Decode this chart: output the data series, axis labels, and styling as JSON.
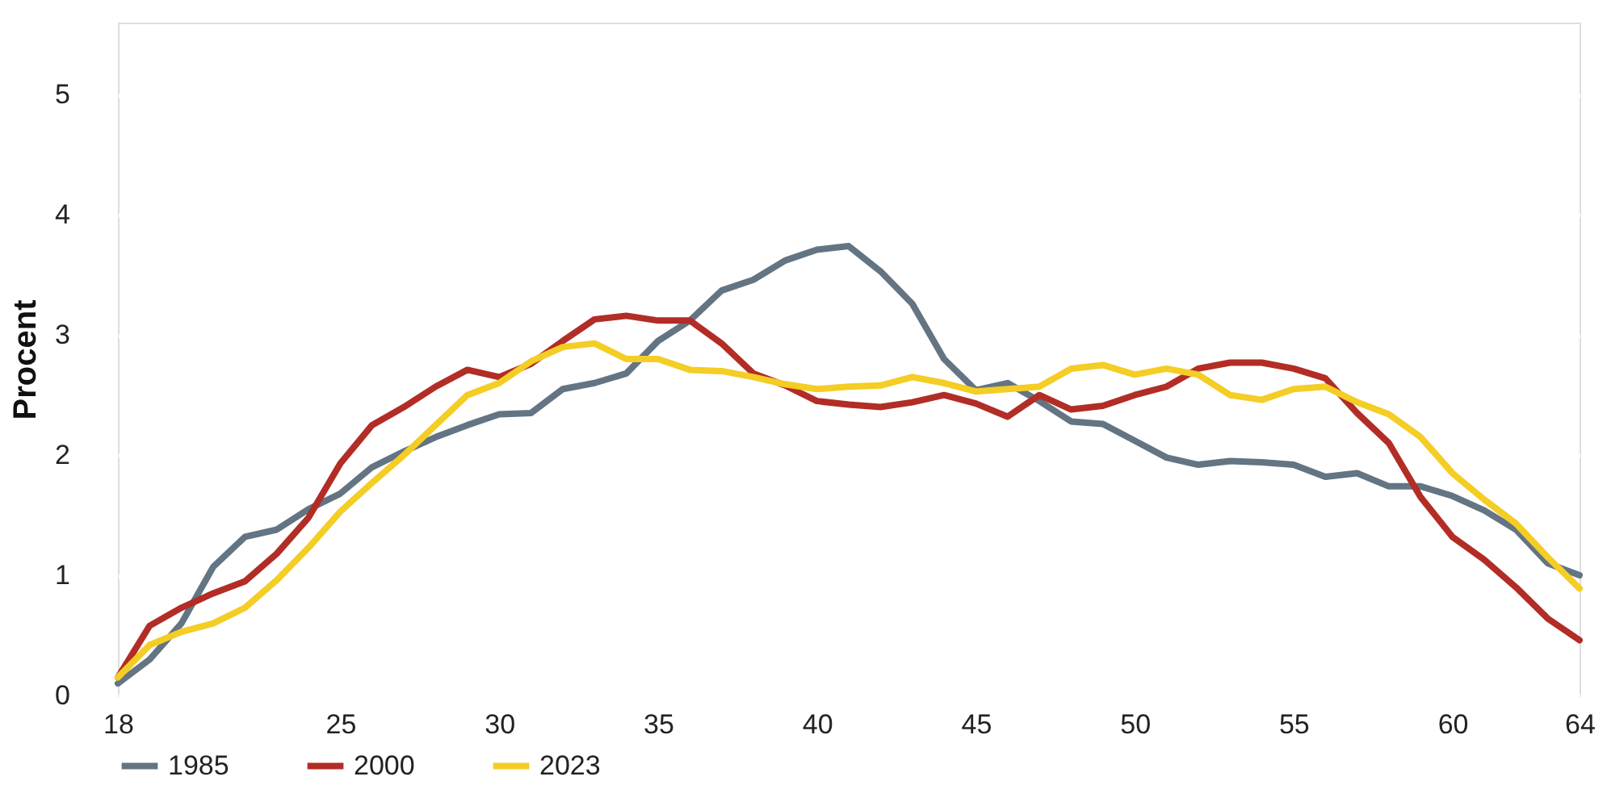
{
  "chart_data": {
    "type": "line",
    "ylabel": "Procent",
    "x": [
      18,
      19,
      20,
      21,
      22,
      23,
      24,
      25,
      26,
      27,
      28,
      29,
      30,
      31,
      32,
      33,
      34,
      35,
      36,
      37,
      38,
      39,
      40,
      41,
      42,
      43,
      44,
      45,
      46,
      47,
      48,
      49,
      50,
      51,
      52,
      53,
      54,
      55,
      56,
      57,
      58,
      59,
      60,
      61,
      62,
      63,
      64
    ],
    "series": [
      {
        "name": "1985",
        "color": "#637483",
        "values": [
          0.1,
          0.3,
          0.6,
          1.07,
          1.32,
          1.38,
          1.55,
          1.68,
          1.9,
          2.03,
          2.15,
          2.25,
          2.34,
          2.35,
          2.55,
          2.6,
          2.68,
          2.95,
          3.12,
          3.37,
          3.46,
          3.62,
          3.71,
          3.74,
          3.53,
          3.26,
          2.8,
          2.54,
          2.6,
          2.45,
          2.28,
          2.26,
          2.12,
          1.98,
          1.92,
          1.95,
          1.94,
          1.92,
          1.82,
          1.85,
          1.74,
          1.74,
          1.66,
          1.54,
          1.38,
          1.1,
          1.0
        ]
      },
      {
        "name": "2000",
        "color": "#b22d25",
        "values": [
          0.15,
          0.58,
          0.73,
          0.85,
          0.95,
          1.18,
          1.48,
          1.93,
          2.25,
          2.4,
          2.57,
          2.71,
          2.65,
          2.76,
          2.95,
          3.13,
          3.16,
          3.12,
          3.12,
          2.93,
          2.68,
          2.58,
          2.45,
          2.42,
          2.4,
          2.44,
          2.5,
          2.43,
          2.32,
          2.5,
          2.38,
          2.41,
          2.5,
          2.57,
          2.72,
          2.77,
          2.77,
          2.72,
          2.64,
          2.35,
          2.1,
          1.65,
          1.32,
          1.13,
          0.9,
          0.64,
          0.46
        ]
      },
      {
        "name": "2023",
        "color": "#f4cd25",
        "values": [
          0.15,
          0.42,
          0.53,
          0.6,
          0.73,
          0.96,
          1.23,
          1.53,
          1.77,
          2.0,
          2.25,
          2.5,
          2.6,
          2.78,
          2.9,
          2.93,
          2.8,
          2.8,
          2.71,
          2.7,
          2.65,
          2.59,
          2.55,
          2.57,
          2.58,
          2.65,
          2.6,
          2.53,
          2.55,
          2.57,
          2.72,
          2.75,
          2.67,
          2.72,
          2.67,
          2.5,
          2.46,
          2.55,
          2.57,
          2.44,
          2.34,
          2.15,
          1.85,
          1.63,
          1.43,
          1.15,
          0.89
        ]
      }
    ],
    "xlim": [
      18,
      64
    ],
    "xticks": [
      18,
      25,
      30,
      35,
      40,
      45,
      50,
      55,
      60,
      64
    ],
    "ylim": [
      0,
      5.6
    ],
    "yticks": [
      0,
      1,
      2,
      3,
      4,
      5
    ],
    "grid": "y",
    "legend": "bottom",
    "line_style": "solid",
    "marker": "none"
  }
}
